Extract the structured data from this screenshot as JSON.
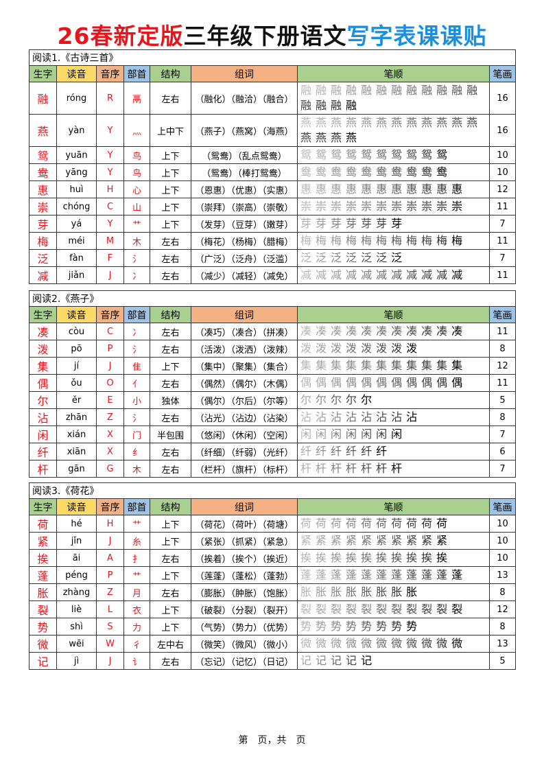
{
  "title": {
    "part1": "26春新定版",
    "part2": "三年级下册语文",
    "part3": "写字表课课贴"
  },
  "headers": [
    "生字",
    "读音",
    "音序",
    "部首",
    "结构",
    "组词",
    "笔顺",
    "笔画"
  ],
  "colors": {
    "title_red": "#e8141b",
    "title_blue": "#1a8fe0",
    "char_red": "#e8141b",
    "hdr_green": "#a9d08e",
    "hdr_yellow": "#ffd966",
    "hdr_orange": "#f4b183",
    "hdr_blue": "#9dc3e6"
  },
  "sections": [
    {
      "caption": "阅读1.《古诗三首》",
      "rows": [
        {
          "zi": "融",
          "py": "róng",
          "yx": "R",
          "bs": "鬲",
          "jg": "左右",
          "zc": "（融化）（融洽）（融合）",
          "bh": "16"
        },
        {
          "zi": "燕",
          "py": "yàn",
          "yx": "Y",
          "bs": "灬",
          "jg": "上中下",
          "zc": "（燕子）（燕窝）（海燕）",
          "bh": "16"
        },
        {
          "zi": "鸳",
          "py": "yuān",
          "yx": "Y",
          "bs": "鸟",
          "jg": "上下",
          "zc": "（鸳鸯）（乱点鸳鸯）",
          "bh": "10"
        },
        {
          "zi": "鸯",
          "py": "yāng",
          "yx": "Y",
          "bs": "鸟",
          "jg": "上下",
          "zc": "（鸳鸯）（棒打鸳鸯）",
          "bh": "10"
        },
        {
          "zi": "惠",
          "py": "huì",
          "yx": "H",
          "bs": "心",
          "jg": "上下",
          "zc": "（恩惠）（优惠）（实惠）",
          "bh": "12"
        },
        {
          "zi": "崇",
          "py": "chóng",
          "yx": "C",
          "bs": "山",
          "jg": "上下",
          "zc": "（崇拜）（崇高）（崇敬）",
          "bh": "11"
        },
        {
          "zi": "芽",
          "py": "yá",
          "yx": "Y",
          "bs": "艹",
          "jg": "上下",
          "zc": "（发芽）（豆芽）（嫩芽）",
          "bh": "7"
        },
        {
          "zi": "梅",
          "py": "méi",
          "yx": "M",
          "bs": "木",
          "jg": "左右",
          "zc": "（梅花）（杨梅）（腊梅）",
          "bh": "11"
        },
        {
          "zi": "泛",
          "py": "fàn",
          "yx": "F",
          "bs": "氵",
          "jg": "左右",
          "zc": "（广泛）（泛舟）（泛滥）",
          "bh": "7"
        },
        {
          "zi": "减",
          "py": "jiǎn",
          "yx": "J",
          "bs": "冫",
          "jg": "左右",
          "zc": "（减少）（减轻）（减免）",
          "bh": "11"
        }
      ]
    },
    {
      "caption": "阅读2.《燕子》",
      "rows": [
        {
          "zi": "凑",
          "py": "còu",
          "yx": "C",
          "bs": "冫",
          "jg": "左右",
          "zc": "（凑巧）（凑合）（拼凑）",
          "bh": "11"
        },
        {
          "zi": "泼",
          "py": "pō",
          "yx": "P",
          "bs": "氵",
          "jg": "左右",
          "zc": "（活泼）（泼洒）（泼辣）",
          "bh": "8"
        },
        {
          "zi": "集",
          "py": "jí",
          "yx": "J",
          "bs": "隹",
          "jg": "上下",
          "zc": "（集中）（聚集）（集合）",
          "bh": "12"
        },
        {
          "zi": "偶",
          "py": "ǒu",
          "yx": "O",
          "bs": "亻",
          "jg": "左右",
          "zc": "（偶然）（偶尔）（木偶）",
          "bh": "11"
        },
        {
          "zi": "尔",
          "py": "ěr",
          "yx": "E",
          "bs": "小",
          "jg": "独体",
          "zc": "（偶尔）（尔后）（尔等）",
          "bh": "5"
        },
        {
          "zi": "沾",
          "py": "zhān",
          "yx": "Z",
          "bs": "氵",
          "jg": "左右",
          "zc": "（沾光）（沾边）（沾染）",
          "bh": "8"
        },
        {
          "zi": "闲",
          "py": "xián",
          "yx": "X",
          "bs": "门",
          "jg": "半包围",
          "zc": "（悠闲）（休闲）（空闲）",
          "bh": "7"
        },
        {
          "zi": "纤",
          "py": "xiān",
          "yx": "X",
          "bs": "纟",
          "jg": "左右",
          "zc": "（纤细）（纤弱）（光纤）",
          "bh": "6"
        },
        {
          "zi": "杆",
          "py": "gān",
          "yx": "G",
          "bs": "木",
          "jg": "左右",
          "zc": "（栏杆）（旗杆）（标杆）",
          "bh": "7"
        }
      ]
    },
    {
      "caption": "阅读3.《荷花》",
      "rows": [
        {
          "zi": "荷",
          "py": "hé",
          "yx": "H",
          "bs": "艹",
          "jg": "上下",
          "zc": "（荷花）（荷叶）（荷塘）",
          "bh": "10"
        },
        {
          "zi": "紧",
          "py": "jǐn",
          "yx": "J",
          "bs": "糸",
          "jg": "上下",
          "zc": "（紧张）（抓紧）（紧急）",
          "bh": "10"
        },
        {
          "zi": "挨",
          "py": "āi",
          "yx": "A",
          "bs": "扌",
          "jg": "左右",
          "zc": "（挨着）（挨个）（挨近）",
          "bh": "10"
        },
        {
          "zi": "蓬",
          "py": "péng",
          "yx": "P",
          "bs": "艹",
          "jg": "上下",
          "zc": "（莲蓬）（蓬松）（蓬勃）",
          "bh": "13"
        },
        {
          "zi": "胀",
          "py": "zhàng",
          "yx": "Z",
          "bs": "月",
          "jg": "左右",
          "zc": "（膨胀）（肿胀）（饱胀）",
          "bh": "8"
        },
        {
          "zi": "裂",
          "py": "liè",
          "yx": "L",
          "bs": "衣",
          "jg": "上下",
          "zc": "（破裂）（分裂）（裂开）",
          "bh": "12"
        },
        {
          "zi": "势",
          "py": "shì",
          "yx": "S",
          "bs": "力",
          "jg": "上下",
          "zc": "（气势）（势力）（优势）",
          "bh": "8"
        },
        {
          "zi": "微",
          "py": "wēi",
          "yx": "W",
          "bs": "彳",
          "jg": "左中右",
          "zc": "（微笑）（微风）（微小）",
          "bh": "13"
        },
        {
          "zi": "记",
          "py": "jì",
          "yx": "J",
          "bs": "讠",
          "jg": "左右",
          "zc": "（忘记）（记忆）（日记）",
          "bh": "5"
        }
      ]
    }
  ],
  "footer": "第　页，共　页"
}
